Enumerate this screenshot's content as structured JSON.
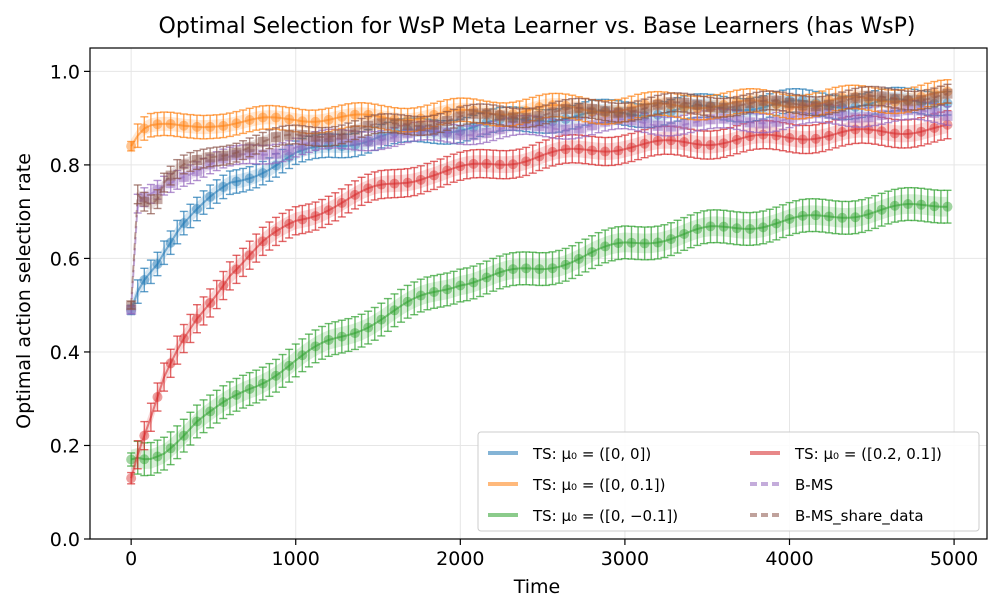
{
  "chart_data": {
    "type": "line",
    "title": "Optimal Selection for WsP Meta Learner vs. Base Learners (has WsP)",
    "xlabel": "Time",
    "ylabel": "Optimal action selection rate",
    "xlim": [
      -250,
      5200
    ],
    "ylim": [
      0,
      1.05
    ],
    "xticks": [
      0,
      1000,
      2000,
      3000,
      4000,
      5000
    ],
    "yticks": [
      0.0,
      0.2,
      0.4,
      0.6,
      0.8,
      1.0
    ],
    "xtick_labels": [
      "0",
      "1000",
      "2000",
      "3000",
      "4000",
      "5000"
    ],
    "ytick_labels": [
      "0.0",
      "0.2",
      "0.4",
      "0.6",
      "0.8",
      "1.0"
    ],
    "grid": true,
    "legend_position": "bottom-right",
    "series": [
      {
        "name": "TS: μ₀ = ([0, 0])",
        "color": "#1f77b4",
        "linestyle": "solid",
        "x": [
          0,
          50,
          100,
          150,
          200,
          300,
          400,
          500,
          600,
          800,
          1000,
          1200,
          1500,
          2000,
          2500,
          3000,
          3500,
          4000,
          4500,
          5000
        ],
        "values": [
          0.49,
          0.54,
          0.57,
          0.59,
          0.62,
          0.67,
          0.7,
          0.73,
          0.76,
          0.79,
          0.82,
          0.84,
          0.86,
          0.88,
          0.9,
          0.91,
          0.92,
          0.93,
          0.93,
          0.94
        ],
        "error": 0.025
      },
      {
        "name": "TS: μ₀ = ([0, 0.1])",
        "color": "#ff7f0e",
        "linestyle": "solid",
        "x": [
          0,
          50,
          100,
          200,
          300,
          500,
          700,
          1000,
          1500,
          2000,
          2500,
          3000,
          3500,
          4000,
          4500,
          5000
        ],
        "values": [
          0.84,
          0.87,
          0.88,
          0.88,
          0.88,
          0.89,
          0.89,
          0.9,
          0.9,
          0.91,
          0.92,
          0.92,
          0.93,
          0.93,
          0.94,
          0.95
        ],
        "error": 0.025
      },
      {
        "name": "TS: μ₀ = ([0, −0.1])",
        "color": "#2ca02c",
        "linestyle": "solid",
        "x": [
          0,
          50,
          100,
          200,
          300,
          400,
          500,
          700,
          1000,
          1200,
          1500,
          1800,
          2000,
          2500,
          3000,
          3500,
          4000,
          4500,
          5000
        ],
        "values": [
          0.17,
          0.17,
          0.17,
          0.19,
          0.22,
          0.25,
          0.27,
          0.32,
          0.38,
          0.42,
          0.47,
          0.52,
          0.55,
          0.58,
          0.63,
          0.66,
          0.68,
          0.7,
          0.72
        ],
        "error": 0.035
      },
      {
        "name": "TS: μ₀ = ([0.2, 0.1])",
        "color": "#d62728",
        "linestyle": "solid",
        "x": [
          0,
          50,
          100,
          150,
          200,
          300,
          400,
          500,
          600,
          800,
          1000,
          1200,
          1500,
          1800,
          2000,
          2500,
          3000,
          3500,
          4000,
          4500,
          5000
        ],
        "values": [
          0.13,
          0.2,
          0.24,
          0.29,
          0.34,
          0.41,
          0.47,
          0.52,
          0.57,
          0.63,
          0.68,
          0.71,
          0.75,
          0.78,
          0.79,
          0.82,
          0.84,
          0.85,
          0.86,
          0.87,
          0.88
        ],
        "error": 0.03
      },
      {
        "name": "B-MS",
        "color": "#9467bd",
        "linestyle": "dashed",
        "x": [
          0,
          30,
          50,
          100,
          200,
          300,
          500,
          700,
          1000,
          1500,
          2000,
          2500,
          3000,
          3500,
          4000,
          4500,
          5000
        ],
        "values": [
          0.49,
          0.7,
          0.72,
          0.73,
          0.76,
          0.78,
          0.8,
          0.82,
          0.84,
          0.86,
          0.87,
          0.88,
          0.89,
          0.89,
          0.9,
          0.91,
          0.91
        ],
        "error": 0.02
      },
      {
        "name": "B-MS_share_data",
        "color": "#8c564b",
        "linestyle": "dashed",
        "x": [
          0,
          30,
          50,
          100,
          150,
          200,
          300,
          500,
          700,
          1000,
          1500,
          2000,
          2500,
          3000,
          3500,
          4000,
          4500,
          5000
        ],
        "values": [
          0.5,
          0.75,
          0.74,
          0.72,
          0.72,
          0.76,
          0.79,
          0.82,
          0.84,
          0.86,
          0.88,
          0.9,
          0.91,
          0.92,
          0.93,
          0.93,
          0.94,
          0.95
        ],
        "error": 0.02
      }
    ]
  }
}
